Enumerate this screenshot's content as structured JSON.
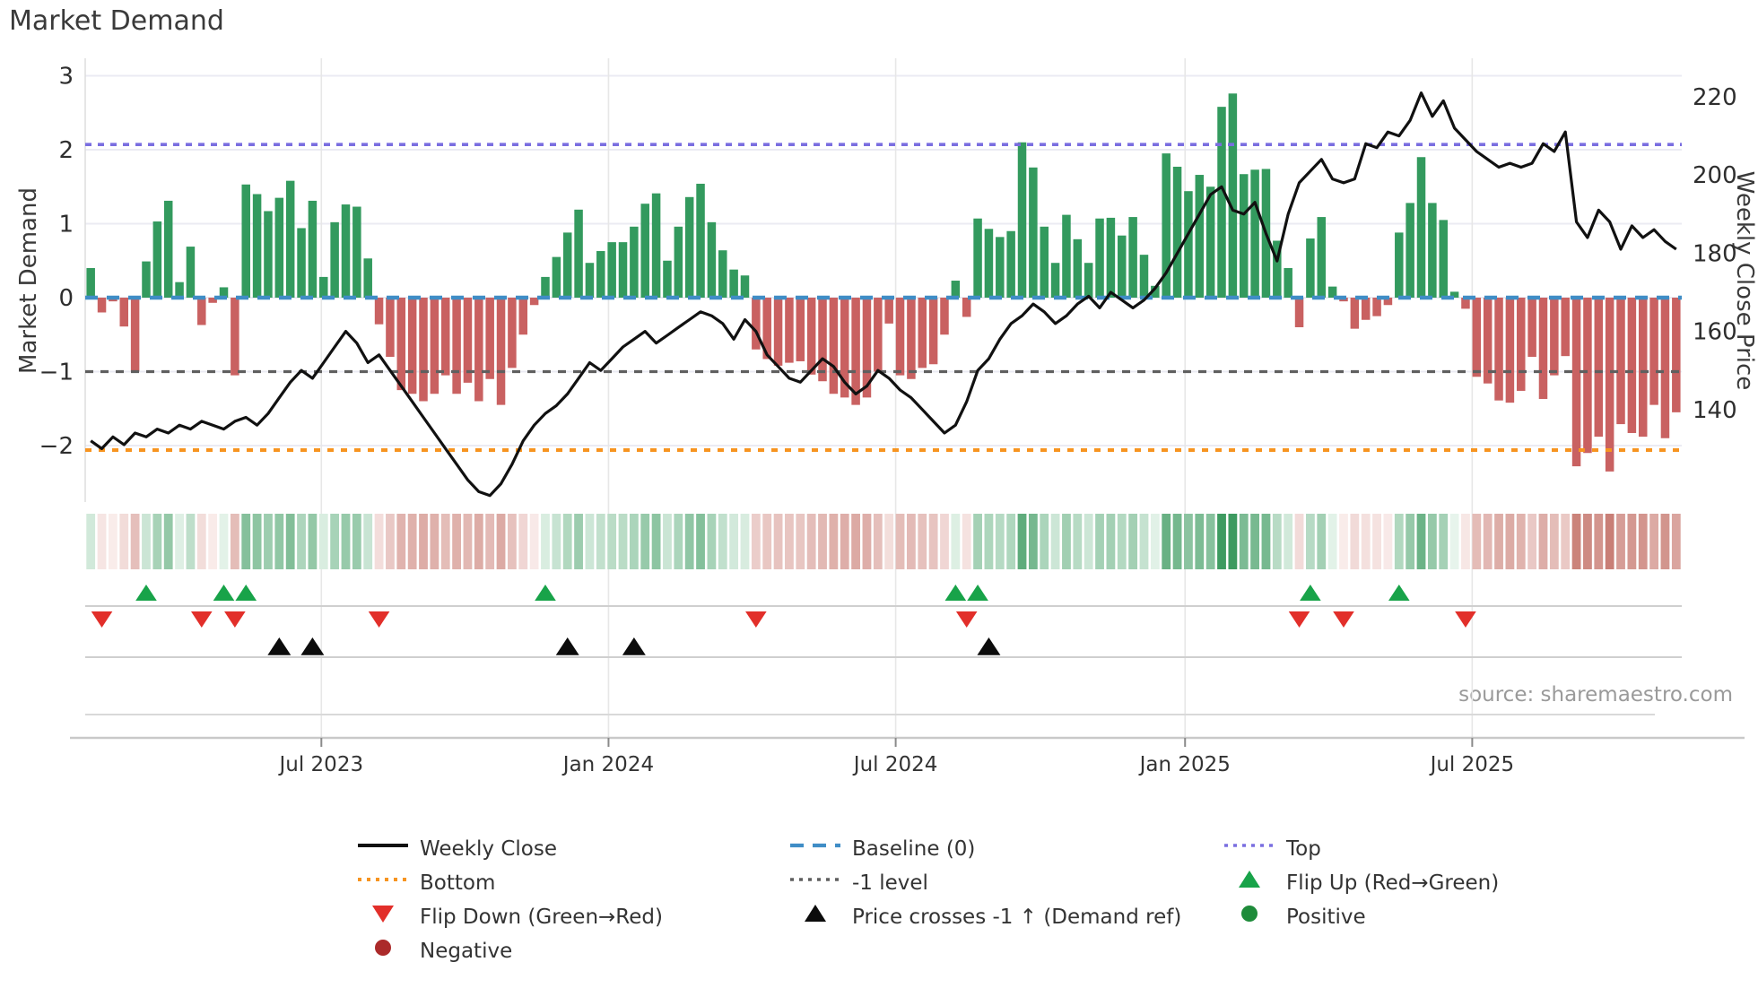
{
  "title": "Market Demand",
  "left_axis": {
    "title": "Market Demand",
    "ticks": [
      {
        "label": "3",
        "value": 3
      },
      {
        "label": "2",
        "value": 2
      },
      {
        "label": "1",
        "value": 1
      },
      {
        "label": "0",
        "value": 0
      },
      {
        "label": "−1",
        "value": -1
      },
      {
        "label": "−2",
        "value": -2
      }
    ]
  },
  "right_axis": {
    "title": "Weekly Close Price",
    "ticks": [
      {
        "label": "220",
        "value": 220
      },
      {
        "label": "200",
        "value": 200
      },
      {
        "label": "180",
        "value": 180
      },
      {
        "label": "160",
        "value": 160
      },
      {
        "label": "140",
        "value": 140
      }
    ]
  },
  "x_axis": {
    "ticks": [
      {
        "label": "Jul 2023",
        "week": 20.8
      },
      {
        "label": "Jan 2024",
        "week": 46.7
      },
      {
        "label": "Jul 2024",
        "week": 72.6
      },
      {
        "label": "Jan 2025",
        "week": 98.7
      },
      {
        "label": "Jul 2025",
        "week": 124.6
      }
    ]
  },
  "source": "source: sharemaestro.com",
  "legend": {
    "entries": [
      {
        "label": "Weekly Close",
        "marker": "line-black",
        "col": 0,
        "row": 0
      },
      {
        "label": "Baseline (0)",
        "marker": "dash-blue",
        "col": 1,
        "row": 0
      },
      {
        "label": "Top",
        "marker": "dot-purple",
        "col": 2,
        "row": 0
      },
      {
        "label": "Bottom",
        "marker": "dot-orange",
        "col": 0,
        "row": 1
      },
      {
        "label": "-1 level",
        "marker": "dot-gray",
        "col": 1,
        "row": 1
      },
      {
        "label": "Flip Up (Red→Green)",
        "marker": "tri-up-green",
        "col": 2,
        "row": 1
      },
      {
        "label": "Flip Down (Green→Red)",
        "marker": "tri-down-red",
        "col": 0,
        "row": 2
      },
      {
        "label": "Price crosses -1 ↑ (Demand ref)",
        "marker": "tri-up-black",
        "col": 1,
        "row": 2
      },
      {
        "label": "Positive",
        "marker": "circle-green",
        "col": 2,
        "row": 2
      },
      {
        "label": "Negative",
        "marker": "circle-darkred",
        "col": 0,
        "row": 3
      }
    ]
  },
  "chart_data": {
    "type": "bar",
    "weeks": 144,
    "x_range": [
      "Feb 2023",
      "Nov 2025"
    ],
    "series": [
      {
        "name": "Market Demand",
        "type": "bar",
        "axis": "left",
        "values": [
          0.4,
          -0.2,
          -0.05,
          -0.39,
          -1.0,
          0.49,
          1.03,
          1.31,
          0.21,
          0.69,
          -0.37,
          -0.07,
          0.14,
          -1.05,
          1.53,
          1.4,
          1.17,
          1.35,
          1.58,
          0.94,
          1.31,
          0.28,
          1.02,
          1.26,
          1.23,
          0.53,
          -0.36,
          -0.8,
          -1.25,
          -1.3,
          -1.4,
          -1.3,
          -1.05,
          -1.3,
          -1.15,
          -1.4,
          -1.1,
          -1.45,
          -0.95,
          -0.5,
          -0.1,
          0.28,
          0.55,
          0.88,
          1.19,
          0.47,
          0.63,
          0.75,
          0.75,
          0.96,
          1.27,
          1.41,
          0.5,
          0.96,
          1.36,
          1.54,
          1.02,
          0.64,
          0.38,
          0.3,
          -0.7,
          -0.83,
          -0.92,
          -0.88,
          -0.86,
          -1.04,
          -1.13,
          -1.3,
          -1.35,
          -1.45,
          -1.35,
          -1.0,
          -0.35,
          -1.05,
          -1.1,
          -0.95,
          -0.9,
          -0.5,
          0.23,
          -0.26,
          1.07,
          0.93,
          0.82,
          0.9,
          2.1,
          1.76,
          0.96,
          0.47,
          1.12,
          0.79,
          0.47,
          1.07,
          1.08,
          0.84,
          1.09,
          0.58,
          0.16,
          1.95,
          1.77,
          1.44,
          1.66,
          1.5,
          2.58,
          2.76,
          1.67,
          1.73,
          1.74,
          0.77,
          0.4,
          -0.4,
          0.8,
          1.09,
          0.15,
          -0.05,
          -0.42,
          -0.3,
          -0.25,
          -0.1,
          0.88,
          1.28,
          1.9,
          1.28,
          1.05,
          0.08,
          -0.15,
          -1.07,
          -1.16,
          -1.39,
          -1.42,
          -1.26,
          -0.8,
          -1.37,
          -1.05,
          -0.79,
          -2.28,
          -2.1,
          -1.88,
          -2.35,
          -1.71,
          -1.83,
          -1.88,
          -1.45,
          -1.9,
          -1.55
        ]
      },
      {
        "name": "Weekly Close",
        "type": "line",
        "axis": "right",
        "values": [
          132,
          130,
          133,
          131,
          134,
          133,
          135,
          134,
          136,
          135,
          137,
          136,
          135,
          137,
          138,
          136,
          139,
          143,
          147,
          150,
          148,
          152,
          156,
          160,
          157,
          152,
          154,
          150,
          146,
          142,
          138,
          134,
          130,
          126,
          122,
          119,
          118,
          121,
          126,
          132,
          136,
          139,
          141,
          144,
          148,
          152,
          150,
          153,
          156,
          158,
          160,
          157,
          159,
          161,
          163,
          165,
          164,
          162,
          158,
          163,
          160,
          154,
          151,
          148,
          147,
          150,
          153,
          151,
          147,
          144,
          146,
          150,
          148,
          145,
          143,
          140,
          137,
          134,
          136,
          142,
          150,
          153,
          158,
          162,
          164,
          167,
          165,
          162,
          164,
          167,
          169,
          166,
          170,
          168,
          166,
          168,
          171,
          175,
          180,
          185,
          190,
          195,
          197,
          191,
          190,
          193,
          185,
          178,
          190,
          198,
          201,
          204,
          199,
          198,
          199,
          208,
          207,
          211,
          210,
          214,
          221,
          215,
          219,
          212,
          209,
          206,
          204,
          202,
          203,
          202,
          203,
          208,
          206,
          211,
          188,
          184,
          191,
          188,
          181,
          187,
          184,
          186,
          183,
          181
        ]
      }
    ],
    "heat_strip": {
      "source_series": "Market Demand",
      "note": "weekly demand intensity red-to-green"
    },
    "reference_levels": {
      "baseline": 0,
      "top": 2.07,
      "bottom": -2.06,
      "minus_one": -1
    },
    "events": {
      "flip_up_weeks": [
        5,
        12,
        14,
        41,
        78,
        80,
        110,
        118
      ],
      "flip_down_weeks": [
        1,
        10,
        13,
        26,
        60,
        79,
        109,
        113,
        124
      ],
      "price_cross_weeks": [
        17,
        20,
        43,
        49,
        81
      ]
    },
    "ylim_left": [
      -2.76,
      3.24
    ],
    "ylim_right": [
      116,
      230
    ],
    "grid": true,
    "legend_position": "bottom",
    "colors": {
      "bar_positive": "#339a5e",
      "bar_negative": "#c96161",
      "price_line": "#111111",
      "baseline": "#3f8dc6",
      "top_line": "#7a6ee0",
      "bottom_line": "#f79420",
      "minus_one_line": "#5f5f5f",
      "flip_up": "#18a349",
      "flip_down": "#e22f2a",
      "price_cross": "#0c0c0c",
      "positive_dot": "#1e8b3a",
      "negative_dot": "#ab2a2a",
      "grid": "#ebebf3",
      "heat_pos_deep": "#3d9a60",
      "heat_neg_deep": "#c87d74"
    }
  }
}
